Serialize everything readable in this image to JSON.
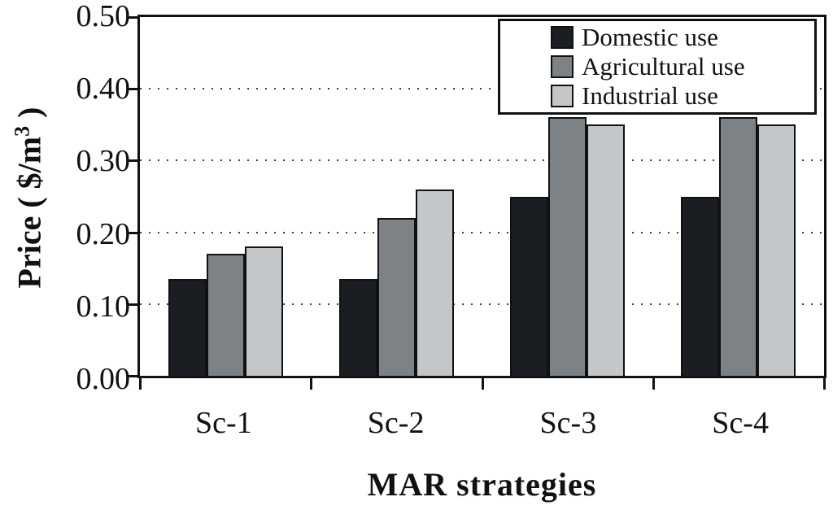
{
  "chart_data": {
    "type": "bar",
    "title": "",
    "categories": [
      "Sc-1",
      "Sc-2",
      "Sc-3",
      "Sc-4"
    ],
    "series": [
      {
        "name": "Domestic use",
        "color": "#1a1d21",
        "values": [
          0.135,
          0.135,
          0.25,
          0.25
        ]
      },
      {
        "name": "Agricultural use",
        "color": "#7d8287",
        "values": [
          0.17,
          0.22,
          0.36,
          0.36
        ]
      },
      {
        "name": "Industrial use",
        "color": "#c4c7ca",
        "values": [
          0.18,
          0.26,
          0.35,
          0.35
        ]
      }
    ],
    "xlabel": "MAR strategies",
    "ylabel": "Price ( $/m³ )",
    "ylabel_parts": {
      "prefix": "Price ( $/m",
      "sup": "3",
      "suffix": " )"
    },
    "ylim": [
      0,
      0.5
    ],
    "ytick_interval": 0.1,
    "yticks": [
      "0.50",
      "0.40",
      "0.30",
      "0.20",
      "0.10",
      "0.00"
    ],
    "grid": "horizontal-dotted",
    "legend_position": "top-right",
    "axis_color": "#111111",
    "background_color": "#ffffff"
  }
}
